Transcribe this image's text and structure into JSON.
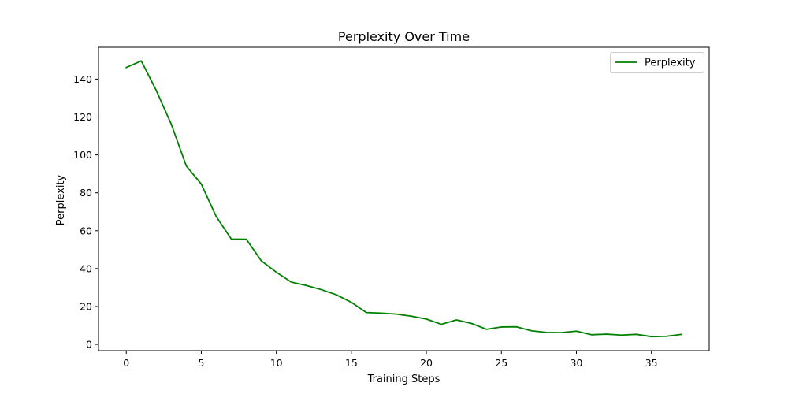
{
  "chart_data": {
    "type": "line",
    "title": "Perplexity Over Time",
    "xlabel": "Training Steps",
    "ylabel": "Perplexity",
    "xlim": [
      -1.85,
      38.85
    ],
    "ylim": [
      -3.3,
      156.8
    ],
    "xticks": [
      0,
      5,
      10,
      15,
      20,
      25,
      30,
      35
    ],
    "yticks": [
      0,
      20,
      40,
      60,
      80,
      100,
      120,
      140
    ],
    "grid": false,
    "legend_position": "top-right",
    "series": [
      {
        "name": "Perplexity",
        "color": "#008000",
        "x": [
          0,
          1,
          2,
          3,
          4,
          5,
          6,
          7,
          8,
          9,
          10,
          11,
          12,
          13,
          14,
          15,
          16,
          17,
          18,
          19,
          20,
          21,
          22,
          23,
          24,
          25,
          26,
          27,
          28,
          29,
          30,
          31,
          32,
          33,
          34,
          35,
          36,
          37
        ],
        "values": [
          146.1,
          149.6,
          134.0,
          116.2,
          94.2,
          84.6,
          67.4,
          55.6,
          55.5,
          44.1,
          38.1,
          32.9,
          31.1,
          28.9,
          26.2,
          22.2,
          16.8,
          16.5,
          16.0,
          14.9,
          13.4,
          10.6,
          12.9,
          11.1,
          8.0,
          9.2,
          9.3,
          7.2,
          6.3,
          6.2,
          7.0,
          5.1,
          5.4,
          4.9,
          5.3,
          4.1,
          4.3,
          5.3
        ]
      }
    ]
  }
}
